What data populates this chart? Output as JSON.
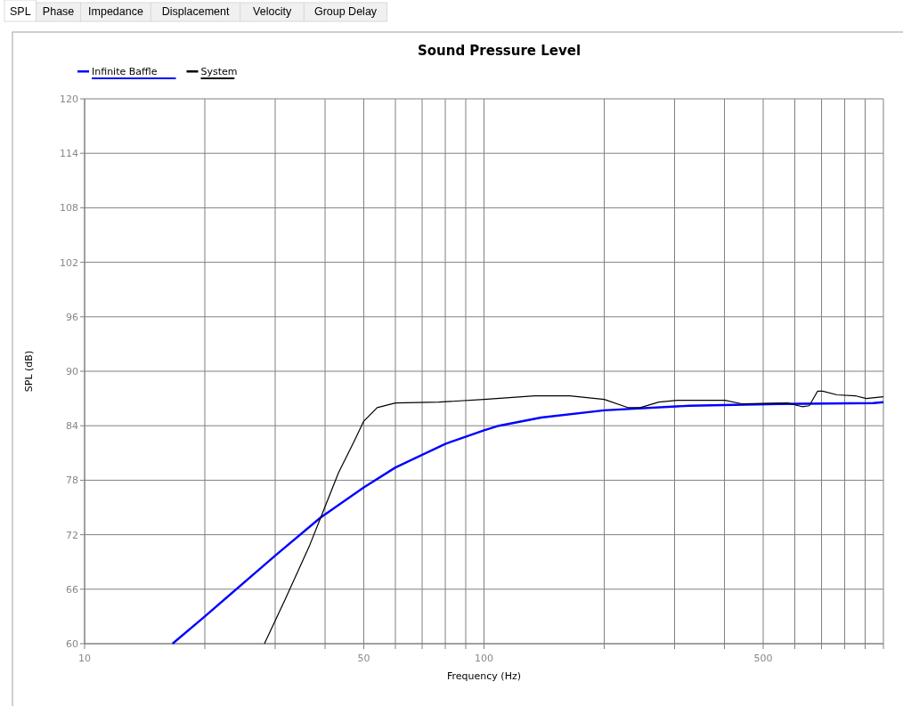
{
  "chart_data": {
    "type": "line",
    "title": "Sound Pressure Level",
    "xlabel": "Frequency (Hz)",
    "ylabel": "SPL (dB)",
    "annotations": [
      "SPL",
      "Phase",
      "Impedance",
      "Displacement",
      "Velocity",
      "Group Delay"
    ],
    "log": "x",
    "grid": true,
    "legend": "top left",
    "marker": "none",
    "line_style": "solid",
    "xlim": [
      10,
      1000
    ],
    "xticks": [
      10,
      {
        "value": 20,
        "label": null
      },
      {
        "value": 30,
        "label": null
      },
      {
        "value": 40,
        "label": null
      },
      50,
      {
        "value": 60,
        "label": null
      },
      {
        "value": 70,
        "label": null
      },
      {
        "value": 80,
        "label": null
      },
      {
        "value": 90,
        "label": null
      },
      100,
      {
        "value": 200,
        "label": null
      },
      {
        "value": 300,
        "label": null
      },
      {
        "value": 400,
        "label": null
      },
      500,
      {
        "value": 600,
        "label": null
      },
      {
        "value": 700,
        "label": null
      },
      {
        "value": 800,
        "label": null
      },
      {
        "value": 900,
        "label": null
      },
      {
        "value": 1000,
        "label": null
      }
    ],
    "ylim": [
      60,
      120
    ],
    "yticks": [
      60,
      66,
      72,
      78,
      84,
      90,
      96,
      102,
      108,
      114,
      120
    ],
    "series": [
      {
        "name": "Infinite Baffle",
        "color": "#0000ff",
        "x": [
          16.6,
          20,
          30,
          39,
          50,
          60,
          80,
          100,
          109,
          139,
          200,
          327,
          547,
          943,
          1000
        ],
        "values": [
          60,
          63.0,
          69.7,
          73.9,
          77.2,
          79.4,
          82.0,
          83.5,
          84.0,
          84.9,
          85.7,
          86.2,
          86.4,
          86.5,
          86.6
        ]
      },
      {
        "name": "System",
        "color": "#000000",
        "x": [
          28.2,
          31.8,
          36.5,
          39.6,
          43.2,
          47.2,
          50,
          54,
          60,
          77,
          100,
          134,
          164,
          200,
          229,
          246,
          274,
          305,
          401,
          444,
          575,
          626,
          652,
          684,
          705,
          765,
          850,
          906,
          1000
        ],
        "values": [
          60,
          64.9,
          70.7,
          74.6,
          78.8,
          82.2,
          84.5,
          86.0,
          86.5,
          86.6,
          86.9,
          87.3,
          87.3,
          86.9,
          86.0,
          86.0,
          86.6,
          86.8,
          86.8,
          86.4,
          86.5,
          86.1,
          86.2,
          87.8,
          87.8,
          87.4,
          87.3,
          87.0,
          87.2
        ]
      }
    ]
  }
}
